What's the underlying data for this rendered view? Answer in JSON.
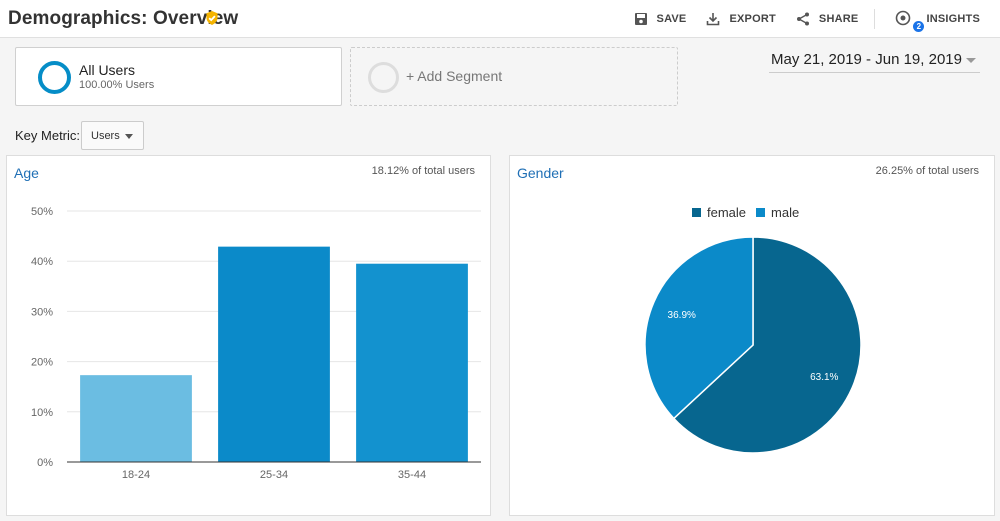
{
  "header": {
    "title": "Demographics: Overview",
    "actions": {
      "save": "SAVE",
      "export": "EXPORT",
      "share": "SHARE",
      "insights": "INSIGHTS",
      "insights_count": "2"
    }
  },
  "segments": {
    "active": {
      "name": "All Users",
      "percent": "100.00% Users"
    },
    "add_label": "+ Add Segment"
  },
  "date_range": "May 21, 2019 - Jun 19, 2019",
  "key_metric": {
    "label": "Key Metric:",
    "value": "Users"
  },
  "colors": {
    "accent": "#058dc7",
    "title_blue": "#1f6fb5",
    "female": "#07668f",
    "male": "#0b8ac9"
  },
  "panels": {
    "age": {
      "title": "Age",
      "share": "18.12% of total users"
    },
    "gender": {
      "title": "Gender",
      "share": "26.25% of total users"
    }
  },
  "chart_data": [
    {
      "type": "bar",
      "title": "Age",
      "categories": [
        "18-24",
        "25-34",
        "35-44"
      ],
      "values": [
        17.3,
        42.9,
        39.5
      ],
      "colors": [
        "#6bbde2",
        "#0b8ac9",
        "#1392cf"
      ],
      "ylim": [
        0,
        50
      ],
      "yticks": [
        "0%",
        "10%",
        "20%",
        "30%",
        "40%",
        "50%"
      ],
      "yticks_values": [
        0,
        10,
        20,
        30,
        40,
        50
      ],
      "grid": true
    },
    {
      "type": "pie",
      "title": "Gender",
      "labels": [
        "female",
        "male"
      ],
      "values": [
        63.1,
        36.9
      ],
      "value_labels": [
        "63.1%",
        "36.9%"
      ],
      "colors": [
        "#07668f",
        "#0b8ac9"
      ],
      "legend": "top"
    }
  ]
}
